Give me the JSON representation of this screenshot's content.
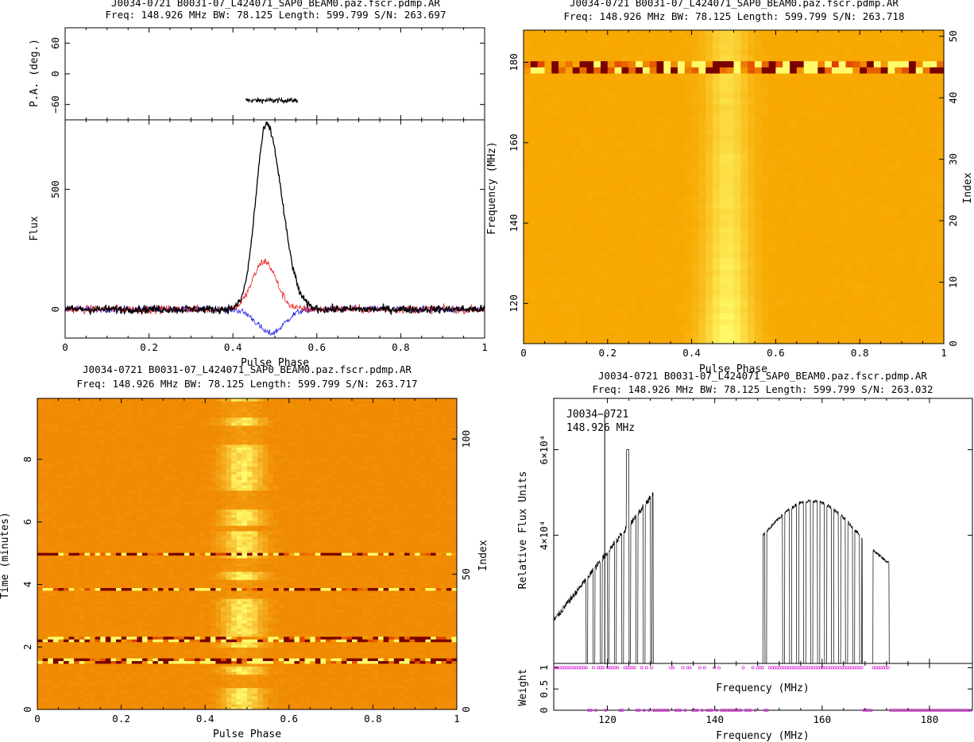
{
  "colors": {
    "ink": "#000000",
    "stokes_I": "#000000",
    "stokes_L": "#e8201a",
    "stokes_V": "#1a1ae8",
    "map_base": "#f7a700",
    "map_bright": "#fffb6a",
    "map_dark": "#7a0000",
    "weights": "#dd33dd"
  },
  "panels": {
    "tl": {
      "title_line1": "J0034-0721 B0031-07_L424071_SAP0_BEAM0.paz.fscr.pdmp.AR",
      "title_line2": "Freq: 148.926 MHz BW: 78.125 Length: 599.799 S/N: 263.697"
    },
    "tr": {
      "title_line1": "J0034-0721 B0031-07_L424071_SAP0_BEAM0.paz.fscr.pdmp.AR",
      "title_line2": "Freq: 148.926 MHz BW: 78.125 Length: 599.799 S/N: 263.718"
    },
    "bl": {
      "title_line1": "J0034-0721 B0031-07_L424071_SAP0_BEAM0.paz.fscr.pdmp.AR",
      "title_line2": "Freq: 148.926 MHz BW: 78.125 Length: 599.799 S/N: 263.717"
    },
    "br": {
      "title_line1": "J0034-0721 B0031-07_L424071_SAP0_BEAM0.paz.fscr.pdmp.AR",
      "title_line2": "Freq: 148.926 MHz BW: 78.125 Length: 599.799 S/N: 263.032"
    }
  },
  "chart_data": [
    {
      "id": "pa",
      "type": "scatter",
      "ylabel": "P.A. (deg.)",
      "xlim": [
        0,
        1
      ],
      "ylim": [
        -90,
        90
      ],
      "yticks": [
        60,
        0,
        -60
      ],
      "ytick_labels": [
        "60",
        "0",
        "−60"
      ],
      "x_range": [
        0.43,
        0.555
      ],
      "y_mean": -52,
      "y_spread": 6
    },
    {
      "id": "profile",
      "type": "line",
      "xlabel": "Pulse Phase",
      "ylabel": "Flux",
      "xlim": [
        0,
        1
      ],
      "ylim": [
        -120,
        790
      ],
      "xticks": [
        0,
        0.2,
        0.4,
        0.6,
        0.8,
        1
      ],
      "xtick_labels": [
        "0",
        "0.2",
        "0.4",
        "0.6",
        "0.8",
        "1"
      ],
      "yticks": [
        0,
        500
      ],
      "ytick_labels": [
        "0",
        "500"
      ],
      "series": [
        {
          "name": "Total intensity",
          "peak": 770,
          "center": 0.48,
          "width": 0.045,
          "noise": 12
        },
        {
          "name": "Linear polarization",
          "peak": 200,
          "center": 0.475,
          "width": 0.04,
          "noise": 12
        },
        {
          "name": "Circular polarization",
          "peak": -100,
          "center": 0.49,
          "width": 0.045,
          "noise": 10
        }
      ]
    },
    {
      "id": "freq_phase",
      "type": "heatmap",
      "xlabel": "Pulse Phase",
      "ylabel": "Frequency (MHz)",
      "y2label": "Index",
      "xlim": [
        0,
        1
      ],
      "ylim": [
        110,
        188
      ],
      "y2lim": [
        0,
        51
      ],
      "xticks": [
        0,
        0.2,
        0.4,
        0.6,
        0.8,
        1
      ],
      "xtick_labels": [
        "0",
        "0.2",
        "0.4",
        "0.6",
        "0.8",
        "1"
      ],
      "yticks": [
        120,
        140,
        160,
        180
      ],
      "ytick_labels": [
        "120",
        "140",
        "160",
        "180"
      ],
      "y2ticks": [
        0,
        10,
        20,
        30,
        40,
        50
      ],
      "y2tick_labels": [
        "0",
        "10",
        "20",
        "30",
        "40",
        "50"
      ],
      "channels": 51,
      "pulse_center": 0.485,
      "pulse_width": 0.04,
      "rfi_rows": [
        44,
        45
      ]
    },
    {
      "id": "time_phase",
      "type": "heatmap",
      "xlabel": "Pulse Phase",
      "ylabel": "Time (minutes)",
      "y2label": "Index",
      "xlim": [
        0,
        1
      ],
      "ylim": [
        0,
        9.95
      ],
      "y2lim": [
        0,
        115
      ],
      "xticks": [
        0,
        0.2,
        0.4,
        0.6,
        0.8,
        1
      ],
      "xtick_labels": [
        "0",
        "0.2",
        "0.4",
        "0.6",
        "0.8",
        "1"
      ],
      "yticks": [
        0,
        2,
        4,
        6,
        8
      ],
      "ytick_labels": [
        "0",
        "2",
        "4",
        "6",
        "8"
      ],
      "y2ticks": [
        0,
        50,
        100
      ],
      "y2tick_labels": [
        "0",
        "50",
        "100"
      ],
      "subints": 115,
      "pulse_center": 0.49,
      "pulse_width": 0.045,
      "rfi_times": [
        1.55,
        2.25,
        3.85,
        5.0
      ]
    },
    {
      "id": "bandpass",
      "type": "line",
      "ylabel": "Relative Flux Units",
      "xlabel": "Frequency (MHz)",
      "annotation_line1": "J0034−0721",
      "annotation_line2": "148.926 MHz",
      "xlim": [
        110,
        188
      ],
      "ylim": [
        10000,
        72000
      ],
      "xticks": [
        120,
        140,
        160,
        180
      ],
      "xtick_labels": [
        "120",
        "140",
        "160",
        "180"
      ],
      "yticks": [
        40000,
        60000
      ],
      "ytick_labels": [
        "4×10⁴",
        "6×10⁴"
      ],
      "marker_freq": 119.5,
      "segments": [
        [
          110,
          128.5
        ],
        [
          149,
          167.5
        ],
        [
          169.5,
          172.5
        ]
      ]
    },
    {
      "id": "weights",
      "type": "scatter",
      "ylabel": "Weight",
      "xlabel": "Frequency (MHz)",
      "xlim": [
        110,
        188
      ],
      "ylim": [
        0,
        1.1
      ],
      "yticks": [
        0,
        0.5,
        1
      ],
      "ytick_labels": [
        "0",
        "0.5",
        "1"
      ],
      "good_ranges": [
        [
          110,
          128.5
        ],
        [
          149,
          167.5
        ],
        [
          169.5,
          172.5
        ]
      ]
    }
  ]
}
